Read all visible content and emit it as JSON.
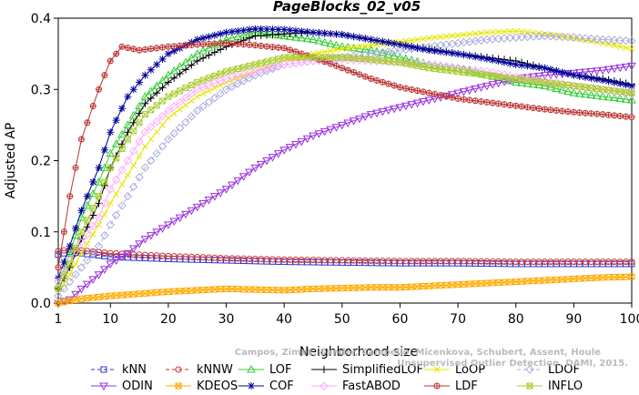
{
  "chart_data": {
    "type": "line",
    "title": "PageBlocks_02_v05",
    "xlabel": "Neighborhood size",
    "ylabel": "Adjusted AP",
    "xlim": [
      1,
      100
    ],
    "ylim": [
      0,
      0.4
    ],
    "xticks": [
      1,
      10,
      20,
      30,
      40,
      50,
      60,
      70,
      80,
      90,
      100
    ],
    "yticks": [
      0.0,
      0.1,
      0.2,
      0.3,
      0.4
    ],
    "grid": false,
    "legend_position": "bottom",
    "watermark": [
      "Campos, Zimek, Sander, Campello, Micenkova, Schubert, Assent, Houle",
      "Unsupervised Outlier Detection. DAMI, 2015."
    ],
    "series": [
      {
        "name": "kNN",
        "color": "#3333cc",
        "marker": "square",
        "dash": "4,3",
        "points": [
          [
            1,
            0.068
          ],
          [
            3,
            0.072
          ],
          [
            5,
            0.07
          ],
          [
            10,
            0.065
          ],
          [
            20,
            0.062
          ],
          [
            30,
            0.06
          ],
          [
            40,
            0.058
          ],
          [
            50,
            0.057
          ],
          [
            60,
            0.056
          ],
          [
            70,
            0.056
          ],
          [
            80,
            0.055
          ],
          [
            90,
            0.055
          ],
          [
            100,
            0.055
          ]
        ]
      },
      {
        "name": "kNNW",
        "color": "#cc3333",
        "marker": "circle",
        "dash": "4,3",
        "points": [
          [
            1,
            0.073
          ],
          [
            3,
            0.075
          ],
          [
            5,
            0.074
          ],
          [
            10,
            0.07
          ],
          [
            20,
            0.066
          ],
          [
            30,
            0.063
          ],
          [
            40,
            0.061
          ],
          [
            50,
            0.06
          ],
          [
            60,
            0.059
          ],
          [
            70,
            0.059
          ],
          [
            80,
            0.058
          ],
          [
            90,
            0.058
          ],
          [
            100,
            0.058
          ]
        ]
      },
      {
        "name": "LOF",
        "color": "#33cc33",
        "marker": "triangle-up",
        "dash": "none",
        "points": [
          [
            1,
            0.025
          ],
          [
            3,
            0.07
          ],
          [
            5,
            0.12
          ],
          [
            8,
            0.17
          ],
          [
            10,
            0.21
          ],
          [
            13,
            0.25
          ],
          [
            16,
            0.29
          ],
          [
            20,
            0.32
          ],
          [
            25,
            0.35
          ],
          [
            30,
            0.37
          ],
          [
            35,
            0.38
          ],
          [
            40,
            0.375
          ],
          [
            45,
            0.37
          ],
          [
            50,
            0.36
          ],
          [
            55,
            0.355
          ],
          [
            60,
            0.345
          ],
          [
            65,
            0.335
          ],
          [
            70,
            0.33
          ],
          [
            75,
            0.32
          ],
          [
            80,
            0.31
          ],
          [
            85,
            0.305
          ],
          [
            90,
            0.295
          ],
          [
            95,
            0.29
          ],
          [
            100,
            0.285
          ]
        ]
      },
      {
        "name": "SimplifiedLOF",
        "color": "#000000",
        "marker": "plus",
        "dash": "none",
        "points": [
          [
            1,
            0.02
          ],
          [
            3,
            0.05
          ],
          [
            5,
            0.09
          ],
          [
            8,
            0.14
          ],
          [
            10,
            0.19
          ],
          [
            13,
            0.24
          ],
          [
            16,
            0.28
          ],
          [
            20,
            0.31
          ],
          [
            25,
            0.34
          ],
          [
            30,
            0.36
          ],
          [
            35,
            0.375
          ],
          [
            40,
            0.378
          ],
          [
            45,
            0.38
          ],
          [
            50,
            0.377
          ],
          [
            55,
            0.37
          ],
          [
            60,
            0.363
          ],
          [
            65,
            0.357
          ],
          [
            70,
            0.35
          ],
          [
            75,
            0.345
          ],
          [
            80,
            0.34
          ],
          [
            85,
            0.33
          ],
          [
            90,
            0.32
          ],
          [
            95,
            0.315
          ],
          [
            100,
            0.307
          ]
        ]
      },
      {
        "name": "LoOP",
        "color": "#e6e600",
        "marker": "x",
        "dash": "none",
        "points": [
          [
            1,
            0.015
          ],
          [
            3,
            0.04
          ],
          [
            5,
            0.07
          ],
          [
            8,
            0.11
          ],
          [
            10,
            0.14
          ],
          [
            13,
            0.18
          ],
          [
            16,
            0.22
          ],
          [
            20,
            0.26
          ],
          [
            25,
            0.29
          ],
          [
            30,
            0.31
          ],
          [
            35,
            0.325
          ],
          [
            40,
            0.34
          ],
          [
            45,
            0.35
          ],
          [
            50,
            0.357
          ],
          [
            55,
            0.362
          ],
          [
            60,
            0.367
          ],
          [
            65,
            0.372
          ],
          [
            70,
            0.376
          ],
          [
            75,
            0.38
          ],
          [
            80,
            0.382
          ],
          [
            85,
            0.378
          ],
          [
            90,
            0.372
          ],
          [
            95,
            0.365
          ],
          [
            100,
            0.357
          ]
        ]
      },
      {
        "name": "LDOF",
        "color": "#aaaadd",
        "marker": "diamond",
        "dash": "4,3",
        "points": [
          [
            1,
            0.01
          ],
          [
            3,
            0.03
          ],
          [
            5,
            0.05
          ],
          [
            8,
            0.08
          ],
          [
            10,
            0.11
          ],
          [
            13,
            0.15
          ],
          [
            16,
            0.19
          ],
          [
            20,
            0.23
          ],
          [
            25,
            0.27
          ],
          [
            30,
            0.3
          ],
          [
            35,
            0.32
          ],
          [
            40,
            0.335
          ],
          [
            45,
            0.34
          ],
          [
            50,
            0.345
          ],
          [
            55,
            0.35
          ],
          [
            60,
            0.355
          ],
          [
            65,
            0.36
          ],
          [
            70,
            0.365
          ],
          [
            75,
            0.37
          ],
          [
            80,
            0.373
          ],
          [
            85,
            0.375
          ],
          [
            90,
            0.373
          ],
          [
            95,
            0.37
          ],
          [
            100,
            0.368
          ]
        ]
      },
      {
        "name": "ODIN",
        "color": "#9933dd",
        "marker": "triangle-down",
        "dash": "none",
        "points": [
          [
            1,
            0.0
          ],
          [
            3,
            0.005
          ],
          [
            5,
            0.02
          ],
          [
            8,
            0.04
          ],
          [
            10,
            0.055
          ],
          [
            13,
            0.07
          ],
          [
            16,
            0.09
          ],
          [
            20,
            0.11
          ],
          [
            25,
            0.135
          ],
          [
            30,
            0.16
          ],
          [
            35,
            0.19
          ],
          [
            40,
            0.215
          ],
          [
            45,
            0.235
          ],
          [
            50,
            0.25
          ],
          [
            55,
            0.265
          ],
          [
            60,
            0.275
          ],
          [
            65,
            0.285
          ],
          [
            70,
            0.295
          ],
          [
            75,
            0.305
          ],
          [
            80,
            0.315
          ],
          [
            85,
            0.32
          ],
          [
            90,
            0.323
          ],
          [
            95,
            0.327
          ],
          [
            100,
            0.333
          ]
        ]
      },
      {
        "name": "KDEOS",
        "color": "#ffaa00",
        "marker": "square-x",
        "dash": "none",
        "points": [
          [
            1,
            0.0
          ],
          [
            3,
            0.003
          ],
          [
            5,
            0.006
          ],
          [
            10,
            0.01
          ],
          [
            15,
            0.013
          ],
          [
            20,
            0.016
          ],
          [
            25,
            0.018
          ],
          [
            30,
            0.02
          ],
          [
            35,
            0.019
          ],
          [
            40,
            0.018
          ],
          [
            45,
            0.02
          ],
          [
            50,
            0.021
          ],
          [
            55,
            0.022
          ],
          [
            60,
            0.022
          ],
          [
            65,
            0.024
          ],
          [
            70,
            0.026
          ],
          [
            75,
            0.028
          ],
          [
            80,
            0.03
          ],
          [
            85,
            0.032
          ],
          [
            90,
            0.034
          ],
          [
            95,
            0.036
          ],
          [
            100,
            0.037
          ]
        ]
      },
      {
        "name": "COF",
        "color": "#000099",
        "marker": "star",
        "dash": "none",
        "points": [
          [
            1,
            0.035
          ],
          [
            3,
            0.08
          ],
          [
            5,
            0.13
          ],
          [
            8,
            0.19
          ],
          [
            10,
            0.24
          ],
          [
            13,
            0.29
          ],
          [
            16,
            0.32
          ],
          [
            20,
            0.35
          ],
          [
            25,
            0.37
          ],
          [
            30,
            0.38
          ],
          [
            35,
            0.385
          ],
          [
            40,
            0.384
          ],
          [
            45,
            0.38
          ],
          [
            50,
            0.377
          ],
          [
            55,
            0.37
          ],
          [
            60,
            0.363
          ],
          [
            65,
            0.355
          ],
          [
            70,
            0.35
          ],
          [
            75,
            0.343
          ],
          [
            80,
            0.335
          ],
          [
            85,
            0.33
          ],
          [
            90,
            0.32
          ],
          [
            95,
            0.313
          ],
          [
            100,
            0.305
          ]
        ]
      },
      {
        "name": "FastABOD",
        "color": "#ffaaff",
        "marker": "diamond",
        "dash": "none",
        "points": [
          [
            1,
            0.03
          ],
          [
            3,
            0.06
          ],
          [
            5,
            0.085
          ],
          [
            8,
            0.12
          ],
          [
            10,
            0.16
          ],
          [
            13,
            0.2
          ],
          [
            16,
            0.24
          ],
          [
            20,
            0.27
          ],
          [
            25,
            0.3
          ],
          [
            30,
            0.315
          ],
          [
            35,
            0.325
          ],
          [
            40,
            0.335
          ],
          [
            45,
            0.34
          ],
          [
            50,
            0.342
          ],
          [
            55,
            0.34
          ],
          [
            60,
            0.338
          ],
          [
            65,
            0.335
          ],
          [
            70,
            0.33
          ],
          [
            75,
            0.325
          ],
          [
            80,
            0.318
          ],
          [
            85,
            0.312
          ],
          [
            90,
            0.305
          ],
          [
            95,
            0.3
          ],
          [
            100,
            0.293
          ]
        ]
      },
      {
        "name": "LDF",
        "color": "#bb3333",
        "marker": "circle-plus",
        "dash": "none",
        "points": [
          [
            1,
            0.05
          ],
          [
            3,
            0.15
          ],
          [
            5,
            0.23
          ],
          [
            8,
            0.3
          ],
          [
            10,
            0.34
          ],
          [
            12,
            0.36
          ],
          [
            15,
            0.355
          ],
          [
            20,
            0.36
          ],
          [
            25,
            0.363
          ],
          [
            30,
            0.365
          ],
          [
            35,
            0.362
          ],
          [
            40,
            0.358
          ],
          [
            45,
            0.345
          ],
          [
            50,
            0.33
          ],
          [
            55,
            0.315
          ],
          [
            60,
            0.303
          ],
          [
            65,
            0.295
          ],
          [
            70,
            0.287
          ],
          [
            75,
            0.282
          ],
          [
            80,
            0.277
          ],
          [
            85,
            0.272
          ],
          [
            90,
            0.268
          ],
          [
            95,
            0.265
          ],
          [
            100,
            0.261
          ]
        ]
      },
      {
        "name": "INFLO",
        "color": "#aacc33",
        "marker": "square-x",
        "dash": "none",
        "points": [
          [
            1,
            0.02
          ],
          [
            3,
            0.055
          ],
          [
            5,
            0.1
          ],
          [
            8,
            0.15
          ],
          [
            10,
            0.19
          ],
          [
            13,
            0.23
          ],
          [
            16,
            0.265
          ],
          [
            20,
            0.29
          ],
          [
            25,
            0.31
          ],
          [
            30,
            0.325
          ],
          [
            35,
            0.335
          ],
          [
            40,
            0.345
          ],
          [
            45,
            0.345
          ],
          [
            50,
            0.345
          ],
          [
            55,
            0.342
          ],
          [
            60,
            0.338
          ],
          [
            65,
            0.33
          ],
          [
            70,
            0.325
          ],
          [
            75,
            0.32
          ],
          [
            80,
            0.315
          ],
          [
            85,
            0.31
          ],
          [
            90,
            0.305
          ],
          [
            95,
            0.3
          ],
          [
            100,
            0.295
          ]
        ]
      }
    ],
    "legend_rows": [
      [
        "kNN",
        "kNNW",
        "LOF",
        "SimplifiedLOF",
        "LoOP",
        "LDOF"
      ],
      [
        "ODIN",
        "KDEOS",
        "COF",
        "FastABOD",
        "LDF",
        "INFLO"
      ]
    ]
  }
}
